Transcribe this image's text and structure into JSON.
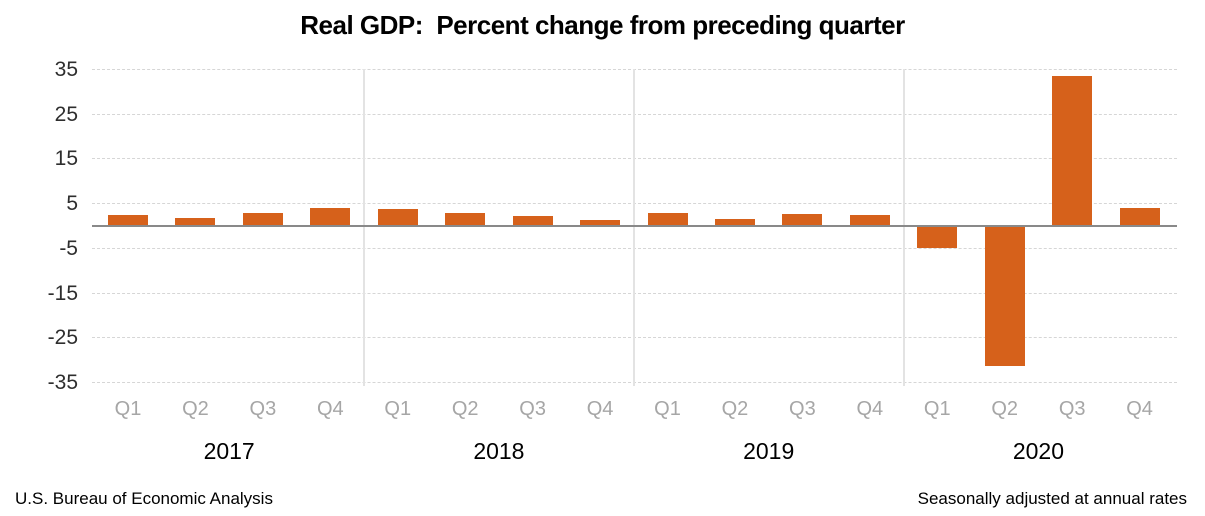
{
  "chart_data": {
    "type": "bar",
    "title": "Real GDP:  Percent change from preceding quarter",
    "ylabel": "",
    "xlabel": "",
    "ylim": [
      -35,
      35
    ],
    "y_ticks": [
      35,
      25,
      15,
      5,
      -5,
      -15,
      -25,
      -35
    ],
    "grid": "horizontal-dashed",
    "legend": "none",
    "quarter_labels": [
      "Q1",
      "Q2",
      "Q3",
      "Q4"
    ],
    "groups": [
      {
        "year": "2017",
        "values": [
          2.3,
          1.7,
          2.9,
          3.9
        ]
      },
      {
        "year": "2018",
        "values": [
          3.8,
          2.7,
          2.1,
          1.3
        ]
      },
      {
        "year": "2019",
        "values": [
          2.9,
          1.5,
          2.6,
          2.4
        ]
      },
      {
        "year": "2020",
        "values": [
          -5.0,
          -31.4,
          33.4,
          4.0
        ]
      }
    ],
    "colors": {
      "bar": "#d6611b",
      "gridline": "#d6d6d6",
      "zero_line": "#898989",
      "year_separator": "#e3e3e3",
      "quarter_label": "#a6a6a6",
      "year_label": "#000000",
      "tick_label": "#2e2e2e"
    }
  },
  "footnotes": {
    "left": "U.S. Bureau of Economic Analysis",
    "right": "Seasonally adjusted at annual rates"
  }
}
